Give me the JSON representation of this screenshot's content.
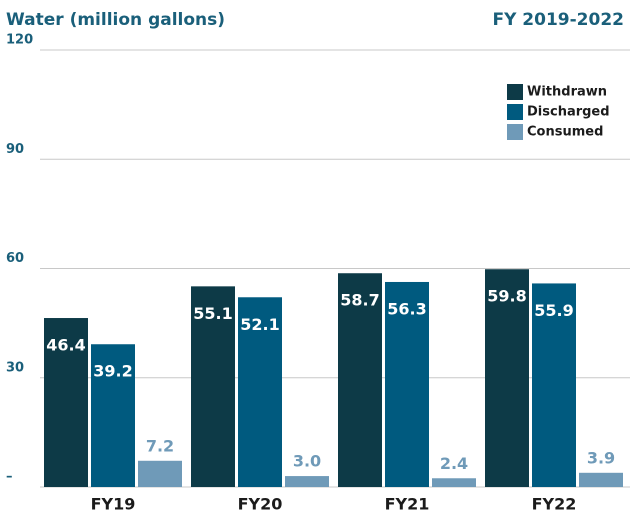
{
  "chart_data": {
    "type": "bar",
    "title": "Water (million gallons)",
    "subtitle": "FY 2019-2022",
    "categories": [
      "FY19",
      "FY20",
      "FY21",
      "FY22"
    ],
    "series": [
      {
        "name": "Withdrawn",
        "color": "#0d3a47",
        "values": [
          46.4,
          55.1,
          58.7,
          59.8
        ]
      },
      {
        "name": "Discharged",
        "color": "#005a7f",
        "values": [
          39.2,
          52.1,
          56.3,
          55.9
        ]
      },
      {
        "name": "Consumed",
        "color": "#6f9ab8",
        "values": [
          7.2,
          3.0,
          2.4,
          3.9
        ],
        "value_labels": [
          "7.2",
          "3.0",
          "2.4",
          "3.9"
        ]
      }
    ],
    "ylim": [
      0,
      120
    ],
    "yticks": [
      {
        "value": 0,
        "label": "–"
      },
      30,
      60,
      90,
      120
    ],
    "grid": true,
    "legend": "top-right"
  }
}
